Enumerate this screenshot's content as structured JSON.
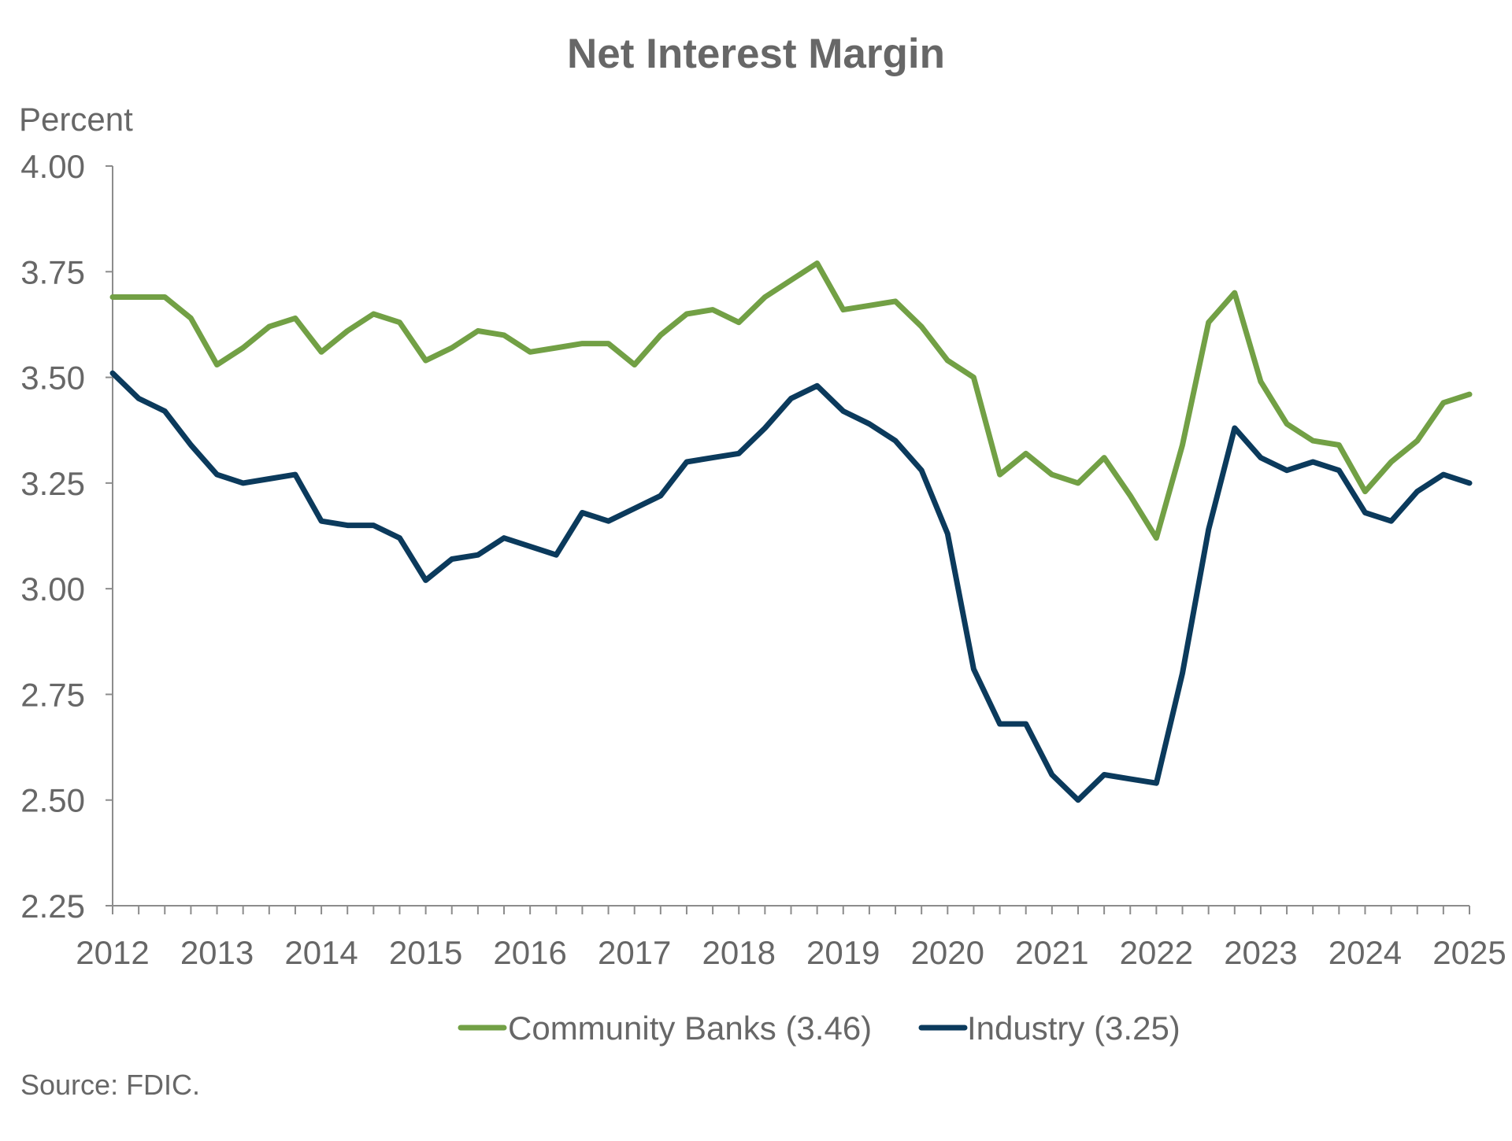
{
  "chart_data": {
    "type": "line",
    "title": "Net Interest Margin",
    "unit_label": "Percent",
    "source": "Source: FDIC.",
    "ylim": [
      2.25,
      4.0
    ],
    "y_ticks": [
      "4.00",
      "3.75",
      "3.50",
      "3.25",
      "3.00",
      "2.75",
      "2.50",
      "2.25"
    ],
    "x_tick_labels": [
      "2012",
      "2013",
      "2014",
      "2015",
      "2016",
      "2017",
      "2018",
      "2019",
      "2020",
      "2021",
      "2022",
      "2023",
      "2024",
      "2025"
    ],
    "x_domain": [
      0,
      13
    ],
    "x_label_offset": 0,
    "grid": false,
    "legend_position": "bottom",
    "series": [
      {
        "name": "Community Banks (3.46)",
        "color": "#72A045",
        "values": [
          3.69,
          3.69,
          3.69,
          3.64,
          3.53,
          3.57,
          3.62,
          3.64,
          3.56,
          3.61,
          3.65,
          3.63,
          3.54,
          3.57,
          3.61,
          3.6,
          3.56,
          3.57,
          3.58,
          3.58,
          3.53,
          3.6,
          3.65,
          3.66,
          3.63,
          3.69,
          3.73,
          3.77,
          3.66,
          3.67,
          3.68,
          3.62,
          3.54,
          3.5,
          3.27,
          3.32,
          3.27,
          3.25,
          3.31,
          3.22,
          3.12,
          3.34,
          3.63,
          3.7,
          3.49,
          3.39,
          3.35,
          3.34,
          3.23,
          3.3,
          3.35,
          3.44,
          3.46
        ]
      },
      {
        "name": "Industry (3.25)",
        "color": "#0B3A5C",
        "values": [
          3.51,
          3.45,
          3.42,
          3.34,
          3.27,
          3.25,
          3.26,
          3.27,
          3.16,
          3.15,
          3.15,
          3.12,
          3.02,
          3.07,
          3.08,
          3.12,
          3.1,
          3.08,
          3.18,
          3.16,
          3.19,
          3.22,
          3.3,
          3.31,
          3.32,
          3.38,
          3.45,
          3.48,
          3.42,
          3.39,
          3.35,
          3.28,
          3.13,
          2.81,
          2.68,
          2.68,
          2.56,
          2.5,
          2.56,
          2.55,
          2.54,
          2.8,
          3.14,
          3.38,
          3.31,
          3.28,
          3.3,
          3.28,
          3.18,
          3.16,
          3.23,
          3.27,
          3.25
        ]
      }
    ]
  }
}
